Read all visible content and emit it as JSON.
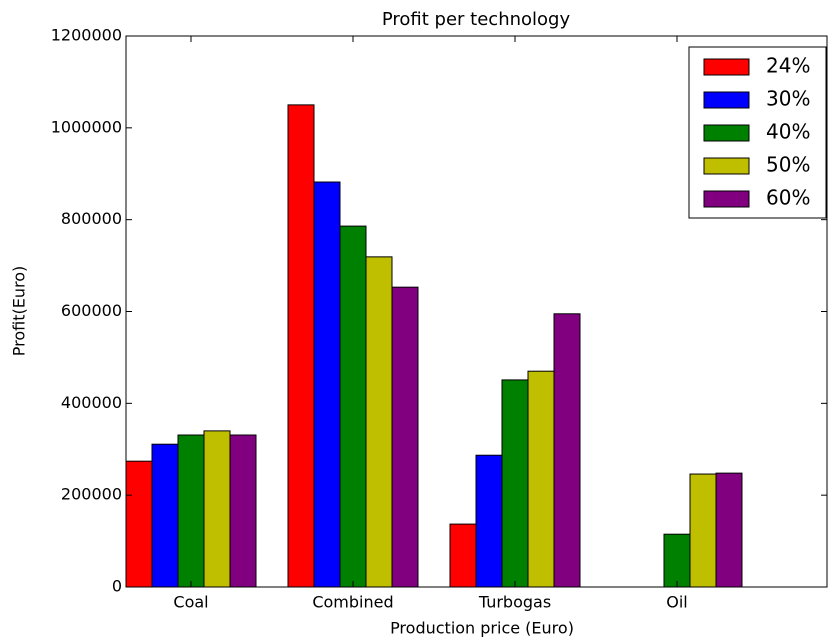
{
  "chart_data": {
    "type": "bar",
    "title": "Profit per technology",
    "x_label": "Production price (Euro)",
    "y_label": "Profit(Euro)",
    "categories": [
      "Coal",
      "Combined",
      "Turbogas",
      "Oil"
    ],
    "series": [
      {
        "name": "24%",
        "color": "#ff0000",
        "values": [
          274000,
          1050000,
          137000,
          0
        ]
      },
      {
        "name": "30%",
        "color": "#0000ff",
        "values": [
          311000,
          882000,
          287000,
          0
        ]
      },
      {
        "name": "40%",
        "color": "#008000",
        "values": [
          331000,
          786000,
          451000,
          115000
        ]
      },
      {
        "name": "50%",
        "color": "#bfbf00",
        "values": [
          340000,
          719000,
          470000,
          246000
        ]
      },
      {
        "name": "60%",
        "color": "#800080",
        "values": [
          331000,
          653000,
          595000,
          248000
        ]
      }
    ],
    "ylim": [
      0,
      1200000
    ],
    "yticks": [
      0,
      200000,
      400000,
      600000,
      800000,
      1000000,
      1200000
    ],
    "legend": "upper right",
    "grid": false
  }
}
